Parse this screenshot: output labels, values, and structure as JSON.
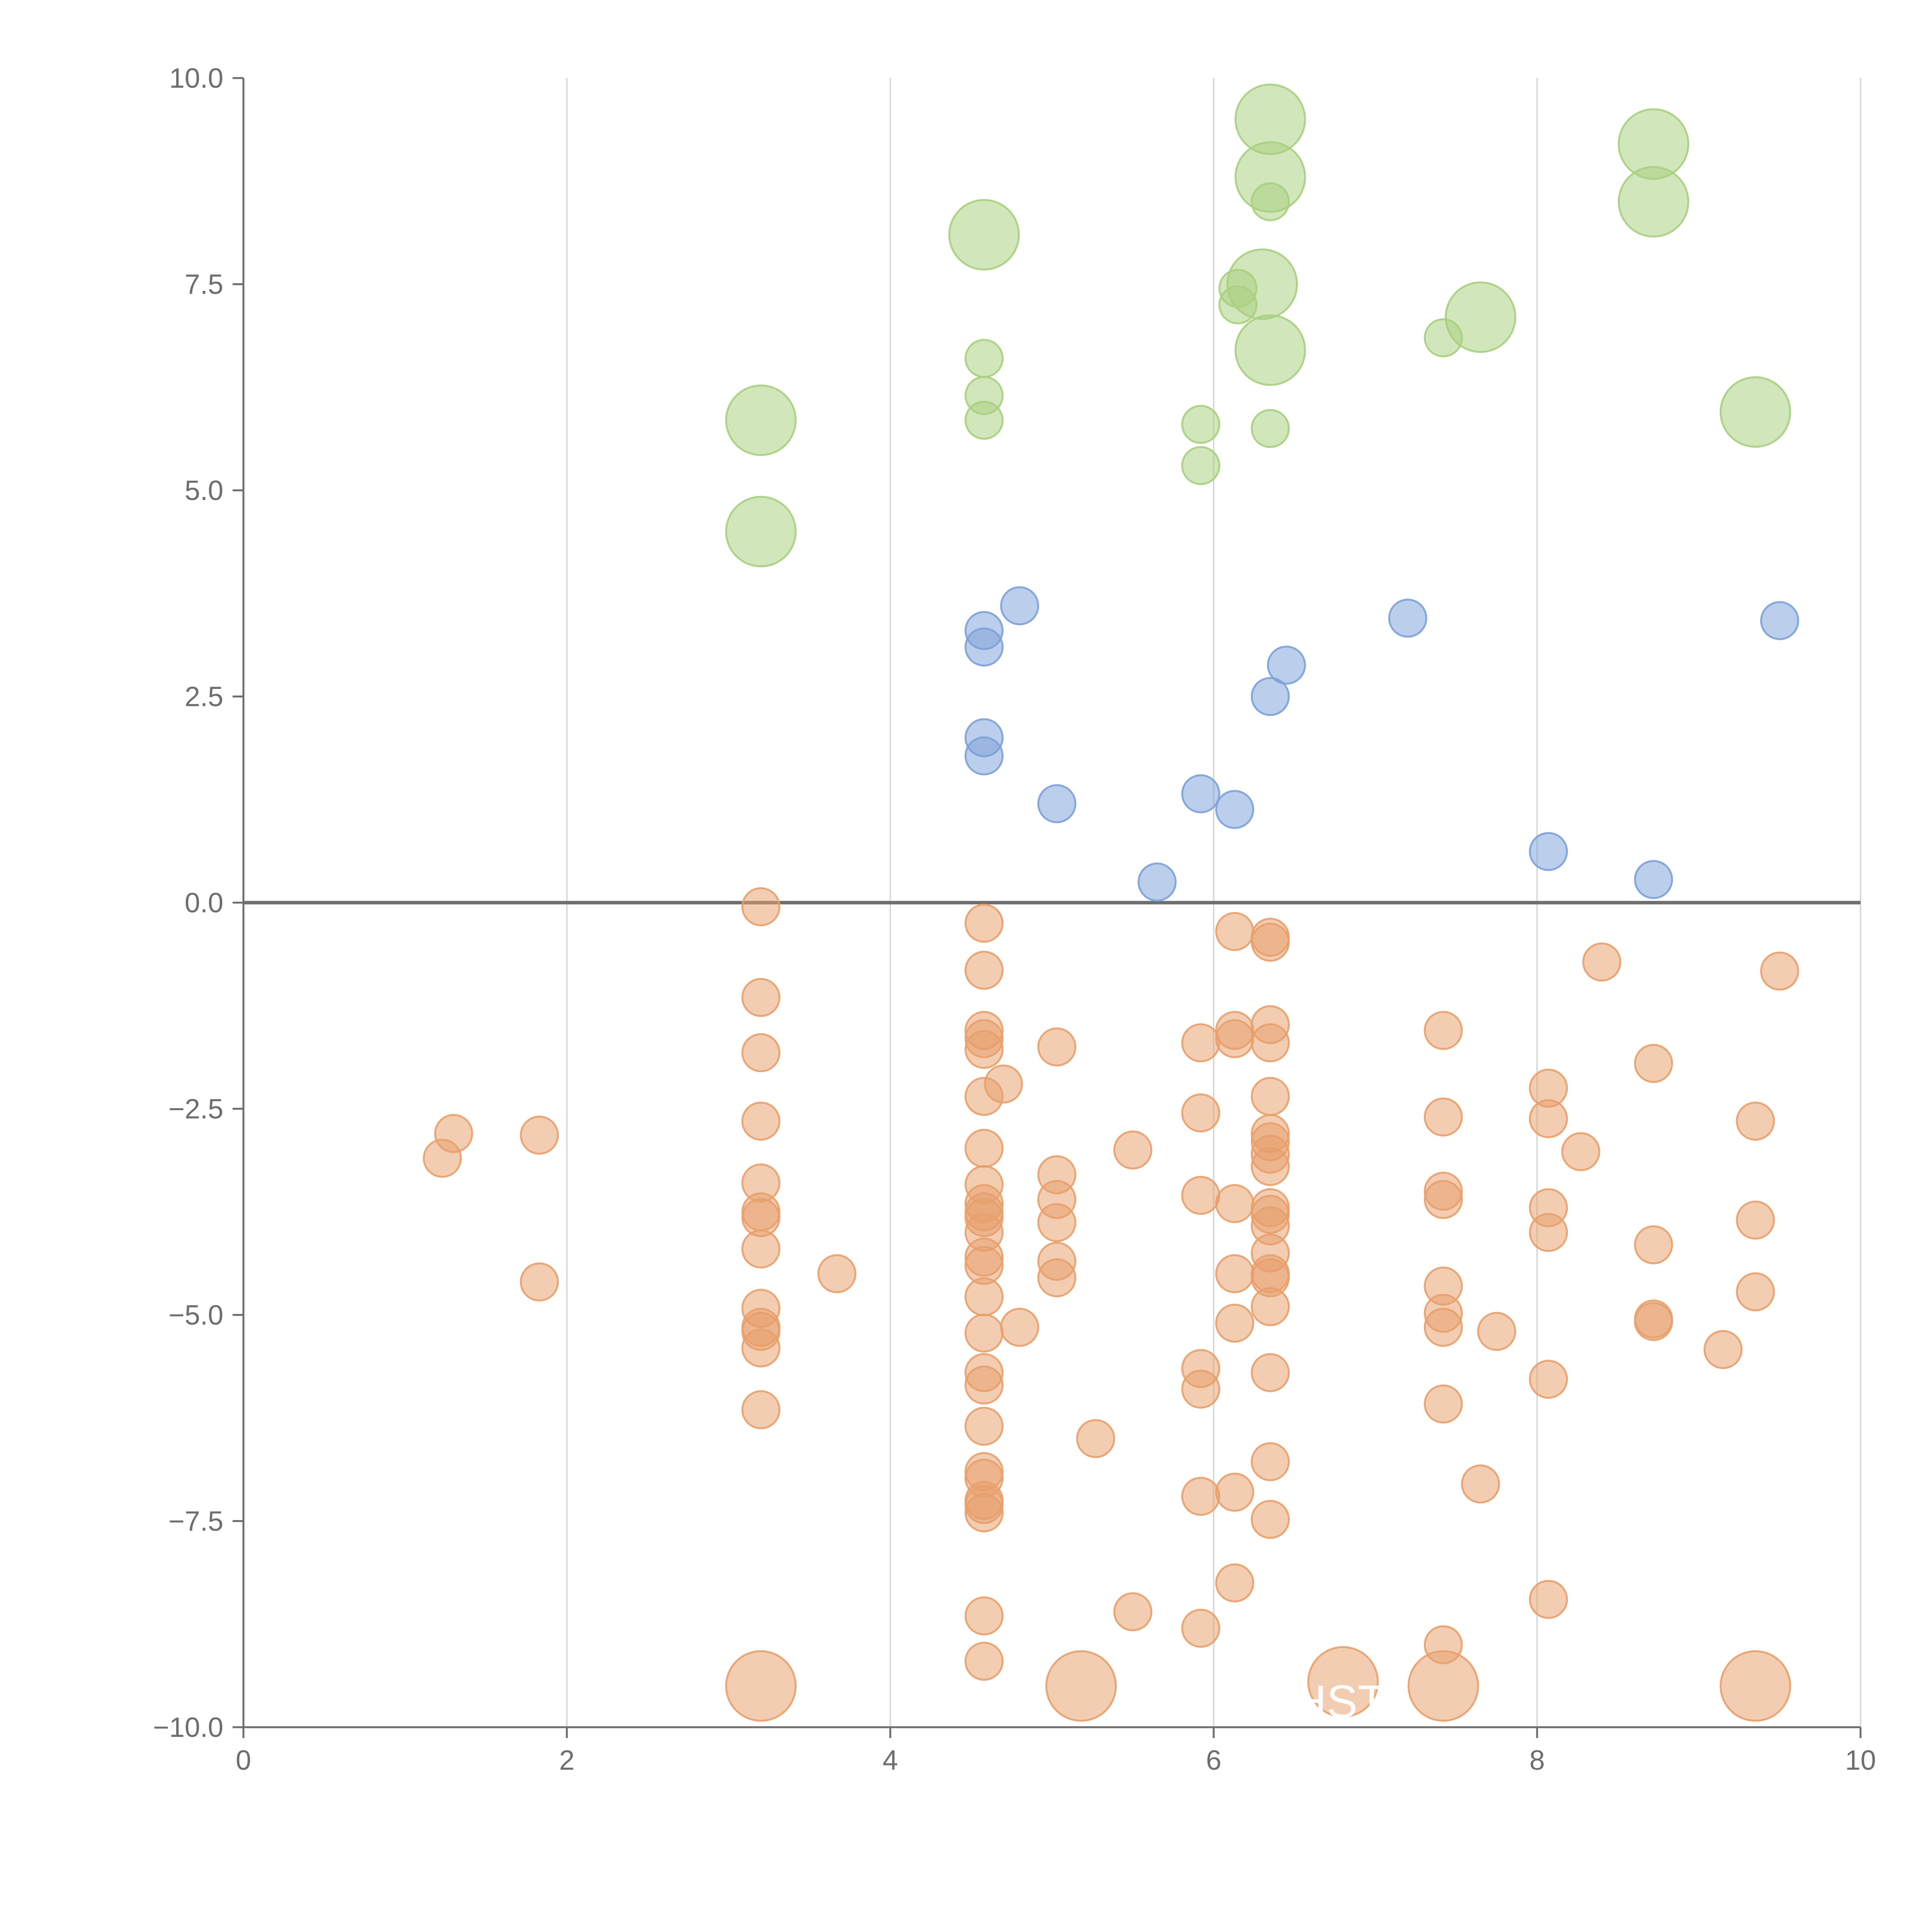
{
  "chart_data": {
    "type": "scatter",
    "title": "",
    "xlabel": "",
    "ylabel": "",
    "xlim": [
      0,
      10
    ],
    "ylim": [
      -10,
      10
    ],
    "x_ticks": [
      0,
      2,
      4,
      6,
      8,
      10
    ],
    "y_ticks": [
      -10,
      -7.5,
      -5,
      -2.5,
      0,
      2.5,
      5,
      7.5,
      10
    ],
    "x_tick_labels": [
      "0",
      "2",
      "4",
      "6",
      "8",
      "10"
    ],
    "y_tick_labels": [
      "−10.0",
      "−7.5",
      "−5.0",
      "−2.5",
      "0.0",
      "2.5",
      "5.0",
      "7.5",
      "10.0"
    ],
    "grid": "vertical",
    "zero_line": true,
    "annotation_text": "GHST",
    "colors": {
      "green": "#a9cf7f",
      "blue": "#7da1d8",
      "orange": "#e8a06c",
      "axis": "#6e6e6e",
      "grid": "#d9d9d9"
    },
    "series": [
      {
        "name": "green",
        "color": "#a9cf7f",
        "points": [
          [
            6.35,
            9.5,
            3
          ],
          [
            6.35,
            8.8,
            3
          ],
          [
            6.35,
            8.5,
            1
          ],
          [
            8.72,
            9.2,
            3
          ],
          [
            8.72,
            8.5,
            3
          ],
          [
            4.58,
            8.1,
            3
          ],
          [
            6.3,
            7.5,
            3
          ],
          [
            6.15,
            7.45,
            1
          ],
          [
            6.15,
            7.25,
            1
          ],
          [
            7.65,
            7.1,
            3
          ],
          [
            7.42,
            6.85,
            1
          ],
          [
            6.35,
            6.7,
            3
          ],
          [
            4.58,
            6.6,
            1
          ],
          [
            4.58,
            6.15,
            1
          ],
          [
            4.58,
            5.85,
            1
          ],
          [
            3.2,
            5.85,
            3
          ],
          [
            9.35,
            5.95,
            3
          ],
          [
            5.92,
            5.8,
            1
          ],
          [
            6.35,
            5.75,
            1
          ],
          [
            5.92,
            5.3,
            1
          ],
          [
            3.2,
            4.5,
            3
          ]
        ]
      },
      {
        "name": "blue",
        "color": "#7da1d8",
        "points": [
          [
            4.8,
            3.6,
            1
          ],
          [
            4.58,
            3.3,
            1
          ],
          [
            4.58,
            3.1,
            1
          ],
          [
            7.2,
            3.45,
            1
          ],
          [
            9.5,
            3.42,
            1
          ],
          [
            6.45,
            2.88,
            1
          ],
          [
            6.35,
            2.5,
            1
          ],
          [
            4.58,
            2.0,
            1
          ],
          [
            4.58,
            1.78,
            1
          ],
          [
            5.92,
            1.32,
            1
          ],
          [
            5.03,
            1.2,
            1
          ],
          [
            6.13,
            1.13,
            1
          ],
          [
            8.07,
            0.62,
            1
          ],
          [
            5.65,
            0.25,
            1
          ],
          [
            8.72,
            0.28,
            1
          ]
        ]
      },
      {
        "name": "orange",
        "color": "#e8a06c",
        "points": [
          [
            3.2,
            -0.05,
            1
          ],
          [
            3.2,
            -1.15,
            1
          ],
          [
            3.2,
            -1.82,
            1
          ],
          [
            3.2,
            -2.65,
            1
          ],
          [
            3.2,
            -3.4,
            1
          ],
          [
            3.2,
            -3.75,
            1
          ],
          [
            3.2,
            -3.82,
            1
          ],
          [
            3.2,
            -4.2,
            1
          ],
          [
            3.2,
            -4.92,
            1
          ],
          [
            3.2,
            -5.15,
            1
          ],
          [
            3.2,
            -5.2,
            1
          ],
          [
            3.2,
            -5.4,
            1
          ],
          [
            3.2,
            -6.15,
            1
          ],
          [
            3.2,
            -9.5,
            3
          ],
          [
            1.23,
            -3.1,
            1
          ],
          [
            1.3,
            -2.8,
            1
          ],
          [
            1.83,
            -2.82,
            1
          ],
          [
            1.83,
            -4.6,
            1
          ],
          [
            3.67,
            -4.5,
            1
          ],
          [
            4.58,
            -0.25,
            1
          ],
          [
            4.58,
            -0.82,
            1
          ],
          [
            4.58,
            -1.55,
            1
          ],
          [
            4.58,
            -1.65,
            1
          ],
          [
            4.58,
            -1.78,
            1
          ],
          [
            4.58,
            -2.35,
            1
          ],
          [
            4.58,
            -2.98,
            1
          ],
          [
            4.58,
            -3.42,
            1
          ],
          [
            4.58,
            -3.65,
            1
          ],
          [
            4.58,
            -3.75,
            1
          ],
          [
            4.58,
            -3.82,
            1
          ],
          [
            4.58,
            -4.0,
            1
          ],
          [
            4.58,
            -4.3,
            1
          ],
          [
            4.58,
            -4.4,
            1
          ],
          [
            4.58,
            -4.78,
            1
          ],
          [
            4.58,
            -5.22,
            1
          ],
          [
            4.58,
            -5.7,
            1
          ],
          [
            4.58,
            -5.85,
            1
          ],
          [
            4.58,
            -6.35,
            1
          ],
          [
            4.58,
            -6.9,
            1
          ],
          [
            4.58,
            -6.98,
            1
          ],
          [
            4.58,
            -7.25,
            1
          ],
          [
            4.58,
            -7.3,
            1
          ],
          [
            4.58,
            -7.4,
            1
          ],
          [
            4.58,
            -8.65,
            1
          ],
          [
            4.58,
            -9.2,
            1
          ],
          [
            4.7,
            -2.2,
            1
          ],
          [
            4.8,
            -5.15,
            1
          ],
          [
            5.03,
            -1.75,
            1
          ],
          [
            5.03,
            -3.3,
            1
          ],
          [
            5.03,
            -3.6,
            1
          ],
          [
            5.03,
            -3.88,
            1
          ],
          [
            5.03,
            -4.35,
            1
          ],
          [
            5.03,
            -4.55,
            1
          ],
          [
            5.18,
            -9.5,
            3
          ],
          [
            5.27,
            -6.5,
            1
          ],
          [
            5.5,
            -3.0,
            1
          ],
          [
            5.5,
            -8.6,
            1
          ],
          [
            5.92,
            -1.7,
            1
          ],
          [
            5.92,
            -2.55,
            1
          ],
          [
            5.92,
            -3.55,
            1
          ],
          [
            5.92,
            -5.65,
            1
          ],
          [
            5.92,
            -5.9,
            1
          ],
          [
            5.92,
            -7.2,
            1
          ],
          [
            5.92,
            -8.8,
            1
          ],
          [
            6.13,
            -0.35,
            1
          ],
          [
            6.13,
            -1.55,
            1
          ],
          [
            6.13,
            -1.65,
            1
          ],
          [
            6.13,
            -3.65,
            1
          ],
          [
            6.13,
            -4.5,
            1
          ],
          [
            6.13,
            -5.1,
            1
          ],
          [
            6.13,
            -7.15,
            1
          ],
          [
            6.13,
            -8.25,
            1
          ],
          [
            6.35,
            -0.42,
            1
          ],
          [
            6.35,
            -0.48,
            1
          ],
          [
            6.35,
            -1.48,
            1
          ],
          [
            6.35,
            -1.7,
            1
          ],
          [
            6.35,
            -2.35,
            1
          ],
          [
            6.35,
            -2.8,
            1
          ],
          [
            6.35,
            -2.9,
            1
          ],
          [
            6.35,
            -3.05,
            1
          ],
          [
            6.35,
            -3.2,
            1
          ],
          [
            6.35,
            -3.7,
            1
          ],
          [
            6.35,
            -3.78,
            1
          ],
          [
            6.35,
            -3.92,
            1
          ],
          [
            6.35,
            -4.25,
            1
          ],
          [
            6.35,
            -4.5,
            1
          ],
          [
            6.35,
            -4.55,
            1
          ],
          [
            6.35,
            -4.9,
            1
          ],
          [
            6.35,
            -5.7,
            1
          ],
          [
            6.35,
            -6.78,
            1
          ],
          [
            6.35,
            -7.48,
            1
          ],
          [
            6.8,
            -9.45,
            3
          ],
          [
            7.42,
            -1.55,
            1
          ],
          [
            7.42,
            -2.6,
            1
          ],
          [
            7.42,
            -3.5,
            1
          ],
          [
            7.42,
            -3.6,
            1
          ],
          [
            7.42,
            -4.65,
            1
          ],
          [
            7.42,
            -4.98,
            1
          ],
          [
            7.42,
            -5.15,
            1
          ],
          [
            7.42,
            -6.08,
            1
          ],
          [
            7.42,
            -9.0,
            1
          ],
          [
            7.42,
            -9.5,
            3
          ],
          [
            7.65,
            -7.05,
            1
          ],
          [
            7.75,
            -5.2,
            1
          ],
          [
            8.07,
            -2.25,
            1
          ],
          [
            8.07,
            -2.62,
            1
          ],
          [
            8.07,
            -3.7,
            1
          ],
          [
            8.07,
            -4.0,
            1
          ],
          [
            8.07,
            -5.78,
            1
          ],
          [
            8.07,
            -8.45,
            1
          ],
          [
            8.27,
            -3.02,
            1
          ],
          [
            8.4,
            -0.72,
            1
          ],
          [
            8.72,
            -1.95,
            1
          ],
          [
            8.72,
            -4.15,
            1
          ],
          [
            8.72,
            -5.05,
            1
          ],
          [
            8.72,
            -5.08,
            1
          ],
          [
            9.15,
            -5.42,
            1
          ],
          [
            9.35,
            -2.65,
            1
          ],
          [
            9.35,
            -3.85,
            1
          ],
          [
            9.35,
            -4.72,
            1
          ],
          [
            9.35,
            -9.5,
            3
          ],
          [
            9.5,
            -0.83,
            1
          ]
        ]
      }
    ]
  }
}
